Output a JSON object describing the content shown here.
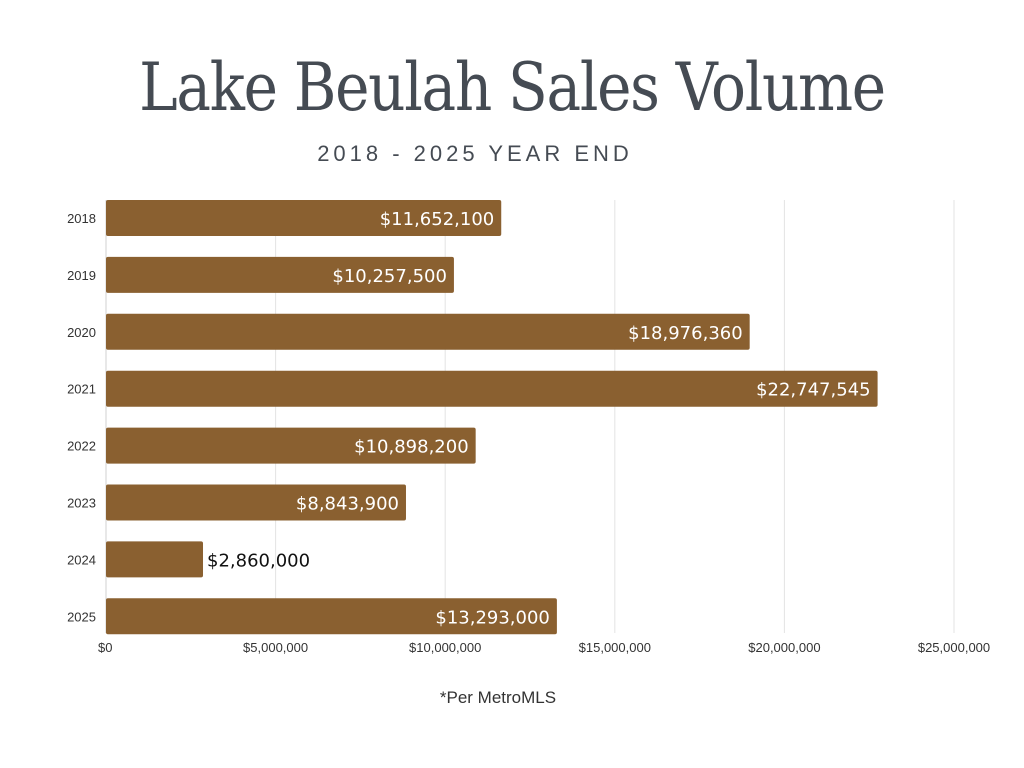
{
  "header": {
    "title": "Lake Beulah Sales Volume",
    "subtitle": "2018 - 2025 YEAR END"
  },
  "footnote": "*Per MetroMLS",
  "colors": {
    "bar": "#8a6030",
    "gridline": "#e3e3e3",
    "label_inside": "#ffffff",
    "label_outside": "#111111",
    "tick_text": "#333333",
    "title_text": "#454b53"
  },
  "chart_data": {
    "type": "bar",
    "orientation": "horizontal",
    "title": "Lake Beulah Sales Volume",
    "subtitle": "2018 - 2025 YEAR END",
    "xlabel": "",
    "ylabel": "",
    "categories": [
      "2018",
      "2019",
      "2020",
      "2021",
      "2022",
      "2023",
      "2024",
      "2025"
    ],
    "values": [
      11652100,
      10257500,
      18976360,
      22747545,
      10898200,
      8843900,
      2860000,
      13293000
    ],
    "data_labels": [
      "$11,652,100",
      "$10,257,500",
      "$18,976,360",
      "$22,747,545",
      "$10,898,200",
      "$8,843,900",
      "$2,860,000",
      "$13,293,000"
    ],
    "xlim": [
      0,
      25000000
    ],
    "xticks": [
      0,
      5000000,
      10000000,
      15000000,
      20000000,
      25000000
    ],
    "xtick_labels": [
      "$0",
      "$5,000,000",
      "$10,000,000",
      "$15,000,000",
      "$20,000,000",
      "$25,000,000"
    ],
    "grid": true,
    "legend": "none",
    "annotation": "*Per MetroMLS"
  }
}
